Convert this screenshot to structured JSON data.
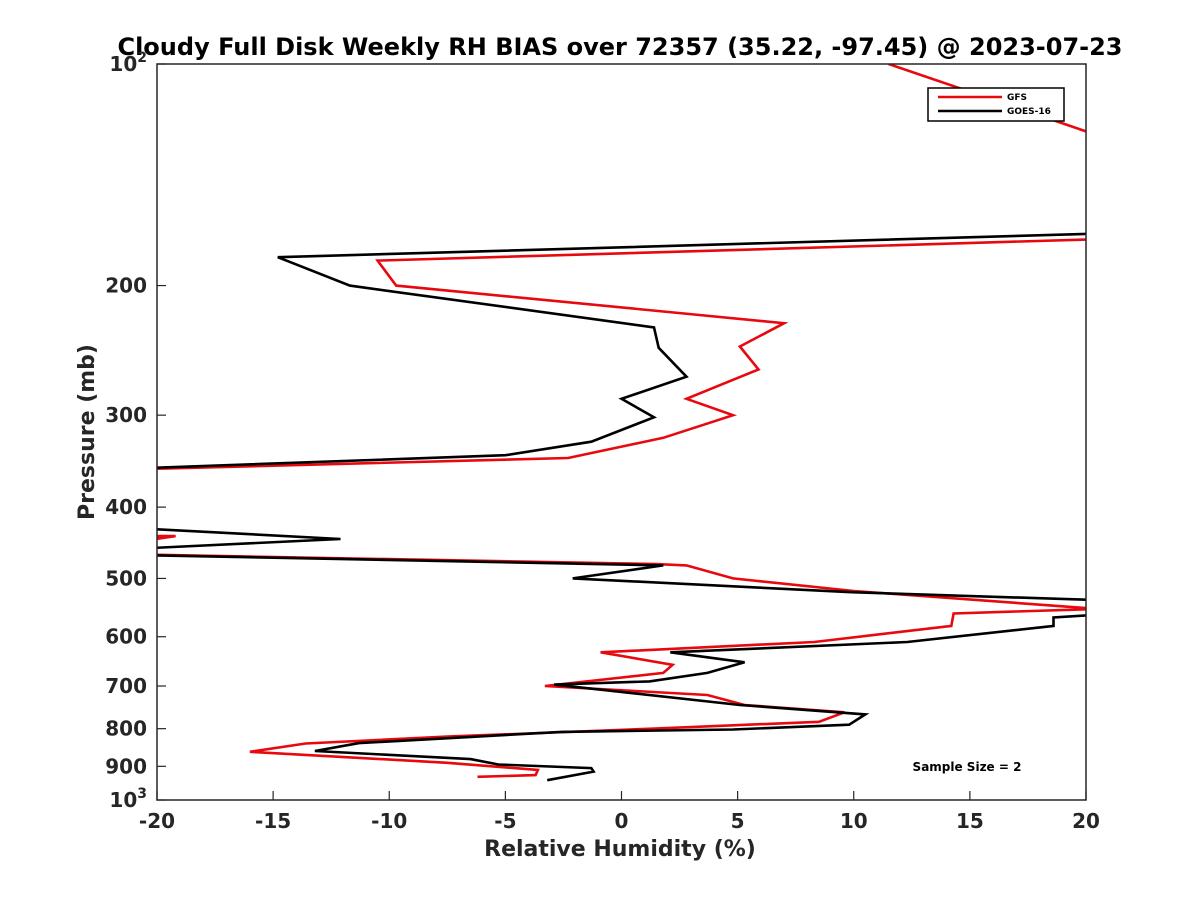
{
  "chart_data": {
    "type": "line",
    "title": "Cloudy Full Disk Weekly RH BIAS over 72357 (35.22, -97.45) @ 2023-07-23",
    "xlabel": "Relative Humidity (%)",
    "ylabel": "Pressure (mb)",
    "xlim": [
      -20,
      20
    ],
    "ylim": [
      100,
      1000
    ],
    "y_scale": "log",
    "y_reversed": true,
    "grid": false,
    "legend_placement": "top-right",
    "x_ticks": [
      -20,
      -15,
      -10,
      -5,
      0,
      5,
      10,
      15,
      20
    ],
    "y_ticks": [
      {
        "value": 100,
        "label": "10",
        "exp": "2"
      },
      {
        "value": 200,
        "label": "200",
        "exp": ""
      },
      {
        "value": 300,
        "label": "300",
        "exp": ""
      },
      {
        "value": 400,
        "label": "400",
        "exp": ""
      },
      {
        "value": 500,
        "label": "500",
        "exp": ""
      },
      {
        "value": 600,
        "label": "600",
        "exp": ""
      },
      {
        "value": 700,
        "label": "700",
        "exp": ""
      },
      {
        "value": 800,
        "label": "800",
        "exp": ""
      },
      {
        "value": 900,
        "label": "900",
        "exp": ""
      },
      {
        "value": 1000,
        "label": "10",
        "exp": "3"
      }
    ],
    "series": [
      {
        "name": "GFS",
        "color": "#e8090f",
        "points": [
          [
            11.5,
            100
          ],
          [
            20.5,
            125
          ],
          [
            null,
            null
          ],
          [
            20.5,
            173
          ],
          [
            -10.5,
            185
          ],
          [
            -9.7,
            200
          ],
          [
            7,
            225
          ],
          [
            5.1,
            242
          ],
          [
            5.9,
            260
          ],
          [
            2.8,
            285
          ],
          [
            4.8,
            300
          ],
          [
            1.8,
            322
          ],
          [
            -2.3,
            343
          ],
          [
            -20.5,
            355
          ],
          [
            null,
            null
          ],
          [
            -20.5,
            438
          ],
          [
            -19.2,
            438
          ],
          [
            -20.5,
            444
          ],
          [
            null,
            null
          ],
          [
            -20.5,
            464
          ],
          [
            1.5,
            478
          ],
          [
            2.8,
            480
          ],
          [
            4.8,
            500
          ],
          [
            10,
            520
          ],
          [
            20.5,
            550
          ],
          [
            14.3,
            558
          ],
          [
            14.2,
            580
          ],
          [
            8.3,
            610
          ],
          [
            -0.9,
            630
          ],
          [
            2.2,
            655
          ],
          [
            1.8,
            672
          ],
          [
            -3.3,
            700
          ],
          [
            3.7,
            720
          ],
          [
            5.3,
            743
          ],
          [
            9.6,
            760
          ],
          [
            8.5,
            783
          ],
          [
            1.3,
            800
          ],
          [
            -7.5,
            820
          ],
          [
            -13.6,
            838
          ],
          [
            -16,
            860
          ],
          [
            -7.5,
            890
          ],
          [
            -3.6,
            910
          ],
          [
            -3.7,
            925
          ],
          [
            -6.2,
            930
          ]
        ]
      },
      {
        "name": "GOES-16",
        "color": "#000000",
        "points": [
          [
            20.5,
            170
          ],
          [
            -14.8,
            183
          ],
          [
            -11.7,
            200
          ],
          [
            1.4,
            228
          ],
          [
            1.6,
            243
          ],
          [
            2.8,
            266
          ],
          [
            0,
            285
          ],
          [
            1.4,
            302
          ],
          [
            -1.3,
            326
          ],
          [
            -5,
            340
          ],
          [
            -20.5,
            354
          ],
          [
            null,
            null
          ],
          [
            -20.5,
            428
          ],
          [
            -12.1,
            442
          ],
          [
            -20.5,
            455
          ],
          [
            null,
            null
          ],
          [
            -20.5,
            465
          ],
          [
            1.8,
            480
          ],
          [
            -2.1,
            500
          ],
          [
            9.9,
            522
          ],
          [
            20.5,
            535
          ],
          [
            null,
            null
          ],
          [
            20.5,
            560
          ],
          [
            18.6,
            565
          ],
          [
            18.6,
            580
          ],
          [
            12.3,
            610
          ],
          [
            2.1,
            630
          ],
          [
            5.3,
            650
          ],
          [
            3.7,
            672
          ],
          [
            1.2,
            690
          ],
          [
            -2.9,
            697
          ],
          [
            5.1,
            743
          ],
          [
            10.5,
            765
          ],
          [
            9.8,
            790
          ],
          [
            4.8,
            802
          ],
          [
            -2.6,
            808
          ],
          [
            -11.3,
            837
          ],
          [
            -13.2,
            858
          ],
          [
            -6.5,
            880
          ],
          [
            -5.3,
            895
          ],
          [
            -1.3,
            905
          ],
          [
            -1.2,
            915
          ],
          [
            -3.2,
            940
          ]
        ]
      }
    ],
    "annotations": [
      {
        "text": "Sample Size = 2"
      }
    ]
  }
}
